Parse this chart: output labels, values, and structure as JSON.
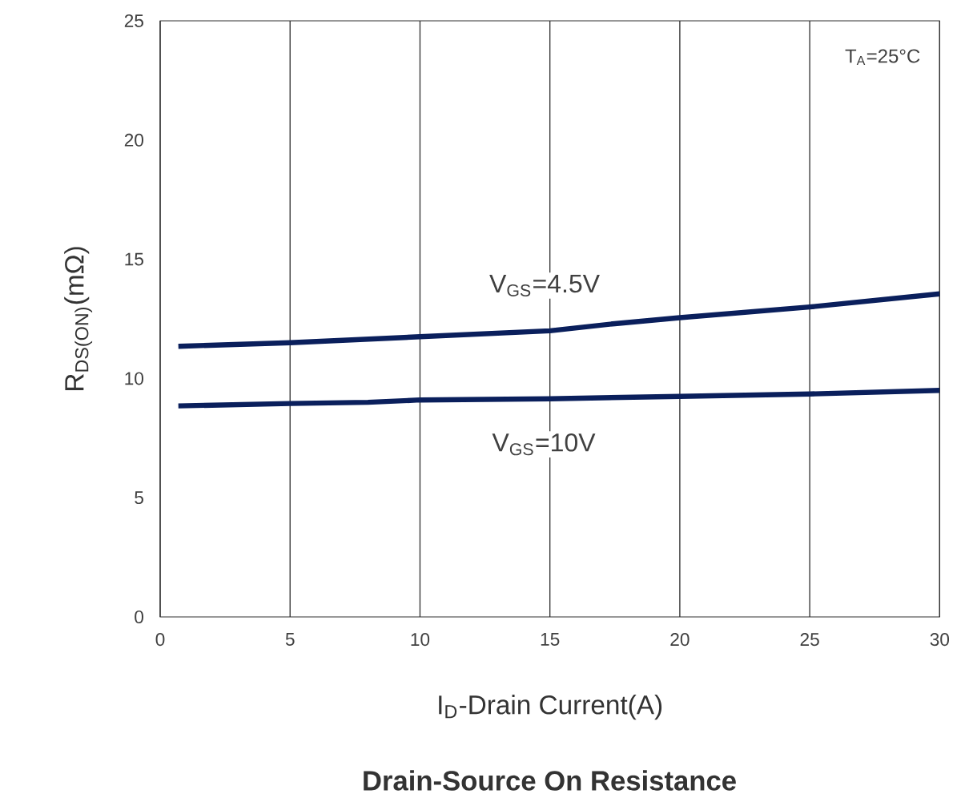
{
  "chart_data": {
    "type": "line",
    "title": "**Drain-Source On Resistance**",
    "xlabel": "I$_{D}$-Drain Current(A)",
    "ylabel": "R$_{DS(ON)}$(mΩ)",
    "xlim": [
      0,
      30
    ],
    "ylim": [
      0,
      25
    ],
    "xticks": [
      0,
      5,
      10,
      15,
      20,
      25,
      30
    ],
    "yticks": [
      0,
      5,
      10,
      15,
      20,
      25
    ],
    "grid": "x",
    "legend": false,
    "marker": "none",
    "line_style": "solid",
    "annotations": [
      "T$_{A}$=25°C"
    ],
    "series": [
      {
        "name": "V$_{GS}$=4.5V",
        "color": "#0a1f5c",
        "x": [
          0.7,
          5,
          10,
          15,
          17.5,
          20,
          25,
          30
        ],
        "values": [
          11.35,
          11.5,
          11.75,
          12.0,
          12.3,
          12.55,
          13.0,
          13.55
        ]
      },
      {
        "name": "V$_{GS}$=10V",
        "color": "#0a1f5c",
        "x": [
          0.7,
          5,
          8,
          10,
          15,
          20,
          25,
          30
        ],
        "values": [
          8.85,
          8.95,
          9.0,
          9.1,
          9.15,
          9.25,
          9.35,
          9.5
        ]
      }
    ]
  }
}
